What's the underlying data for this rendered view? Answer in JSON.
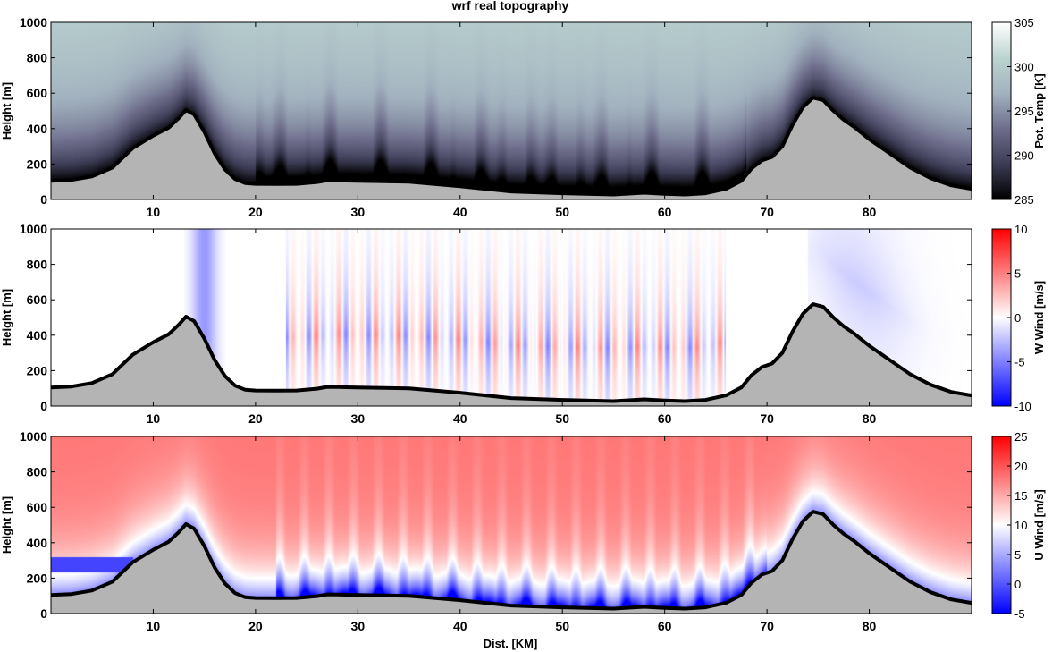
{
  "chart_data": {
    "title": "wrf real topography",
    "xlabel": "Dist. [KM]",
    "xlim": [
      0,
      90
    ],
    "x_ticks": [
      10,
      20,
      30,
      40,
      50,
      60,
      70,
      80
    ],
    "terrain": {
      "x": [
        0,
        2,
        4,
        6,
        8,
        10,
        11.5,
        12.5,
        13.2,
        14,
        15,
        16,
        17,
        18,
        19,
        20,
        22,
        24,
        26,
        27,
        28,
        30,
        35,
        40,
        45,
        50,
        55,
        58,
        60,
        62,
        64,
        66,
        67.5,
        68.5,
        69.5,
        70.5,
        71.5,
        72.5,
        73.5,
        74.5,
        75.5,
        76.5,
        77.5,
        78.5,
        80,
        82,
        84,
        86,
        88,
        90
      ],
      "height": [
        105,
        110,
        130,
        180,
        290,
        360,
        405,
        460,
        505,
        480,
        380,
        260,
        170,
        115,
        92,
        88,
        87,
        88,
        98,
        108,
        107,
        105,
        100,
        75,
        45,
        35,
        28,
        38,
        32,
        28,
        35,
        60,
        105,
        175,
        220,
        240,
        300,
        420,
        520,
        575,
        560,
        500,
        450,
        410,
        340,
        260,
        180,
        120,
        80,
        60
      ]
    },
    "panels": [
      {
        "type": "heatmap",
        "variable": "potential_temperature",
        "ylabel": "Height [m]",
        "ylim": [
          0,
          1000
        ],
        "y_ticks": [
          0,
          200,
          400,
          600,
          800,
          1000
        ],
        "colorbar": {
          "label": "Pot. Temp [K]",
          "range": [
            285,
            305
          ],
          "ticks": [
            285,
            290,
            295,
            300,
            305
          ],
          "colors": [
            "#000000",
            "#3c3c55",
            "#6e6e8c",
            "#a2b2bf",
            "#bcd4d0",
            "#ffffff"
          ]
        }
      },
      {
        "type": "heatmap",
        "variable": "vertical_wind",
        "ylabel": "Height [m]",
        "ylim": [
          0,
          1000
        ],
        "y_ticks": [
          0,
          200,
          400,
          600,
          800,
          1000
        ],
        "colorbar": {
          "label": "W Wind [m/s]",
          "range": [
            -10,
            10
          ],
          "ticks": [
            -10,
            -5,
            0,
            5,
            10
          ],
          "colors": [
            "#0000ff",
            "#ffffff",
            "#ff0000"
          ]
        }
      },
      {
        "type": "heatmap",
        "variable": "horizontal_wind",
        "ylabel": "Height [m]",
        "ylim": [
          0,
          1000
        ],
        "y_ticks": [
          0,
          200,
          400,
          600,
          800,
          1000
        ],
        "colorbar": {
          "label": "U Wind [m/s]",
          "range": [
            -5,
            25
          ],
          "ticks": [
            -5,
            0,
            5,
            10,
            15,
            20,
            25
          ],
          "colors": [
            "#0000ff",
            "#ffffff",
            "#ff0000"
          ]
        }
      }
    ]
  }
}
